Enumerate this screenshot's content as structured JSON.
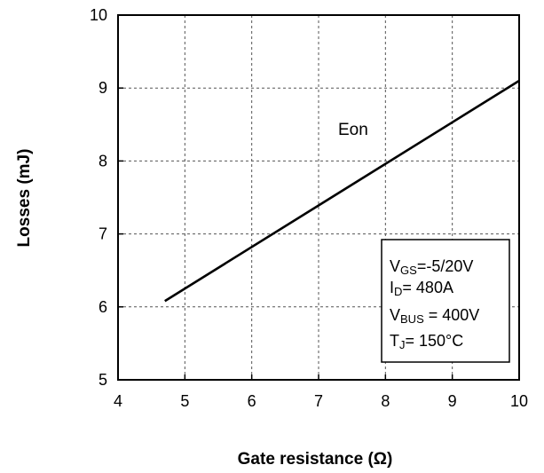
{
  "chart_data": {
    "type": "line",
    "xlabel": "Gate resistance (Ω)",
    "ylabel": "Losses (mJ)",
    "xlim": [
      4,
      10
    ],
    "ylim": [
      5,
      10
    ],
    "xticks": [
      "4",
      "5",
      "6",
      "7",
      "8",
      "9",
      "10"
    ],
    "yticks": [
      "5",
      "6",
      "7",
      "8",
      "9",
      "10"
    ],
    "grid": true,
    "grid_style": "dashed",
    "series": [
      {
        "name": "Eon",
        "color": "#000000",
        "x": [
          4.7,
          10.0
        ],
        "y": [
          6.08,
          9.1
        ]
      }
    ],
    "conditions": {
      "vgs": {
        "main": "V",
        "sub": "GS",
        "rest": "=-5/20V"
      },
      "id": {
        "main": "I",
        "sub": "D",
        "rest": "= 480A"
      },
      "vbus": {
        "main": "V",
        "sub": "BUS",
        "rest": " = 400V"
      },
      "tj": {
        "main": "T",
        "sub": "J",
        "rest": "= 150°C"
      }
    }
  }
}
